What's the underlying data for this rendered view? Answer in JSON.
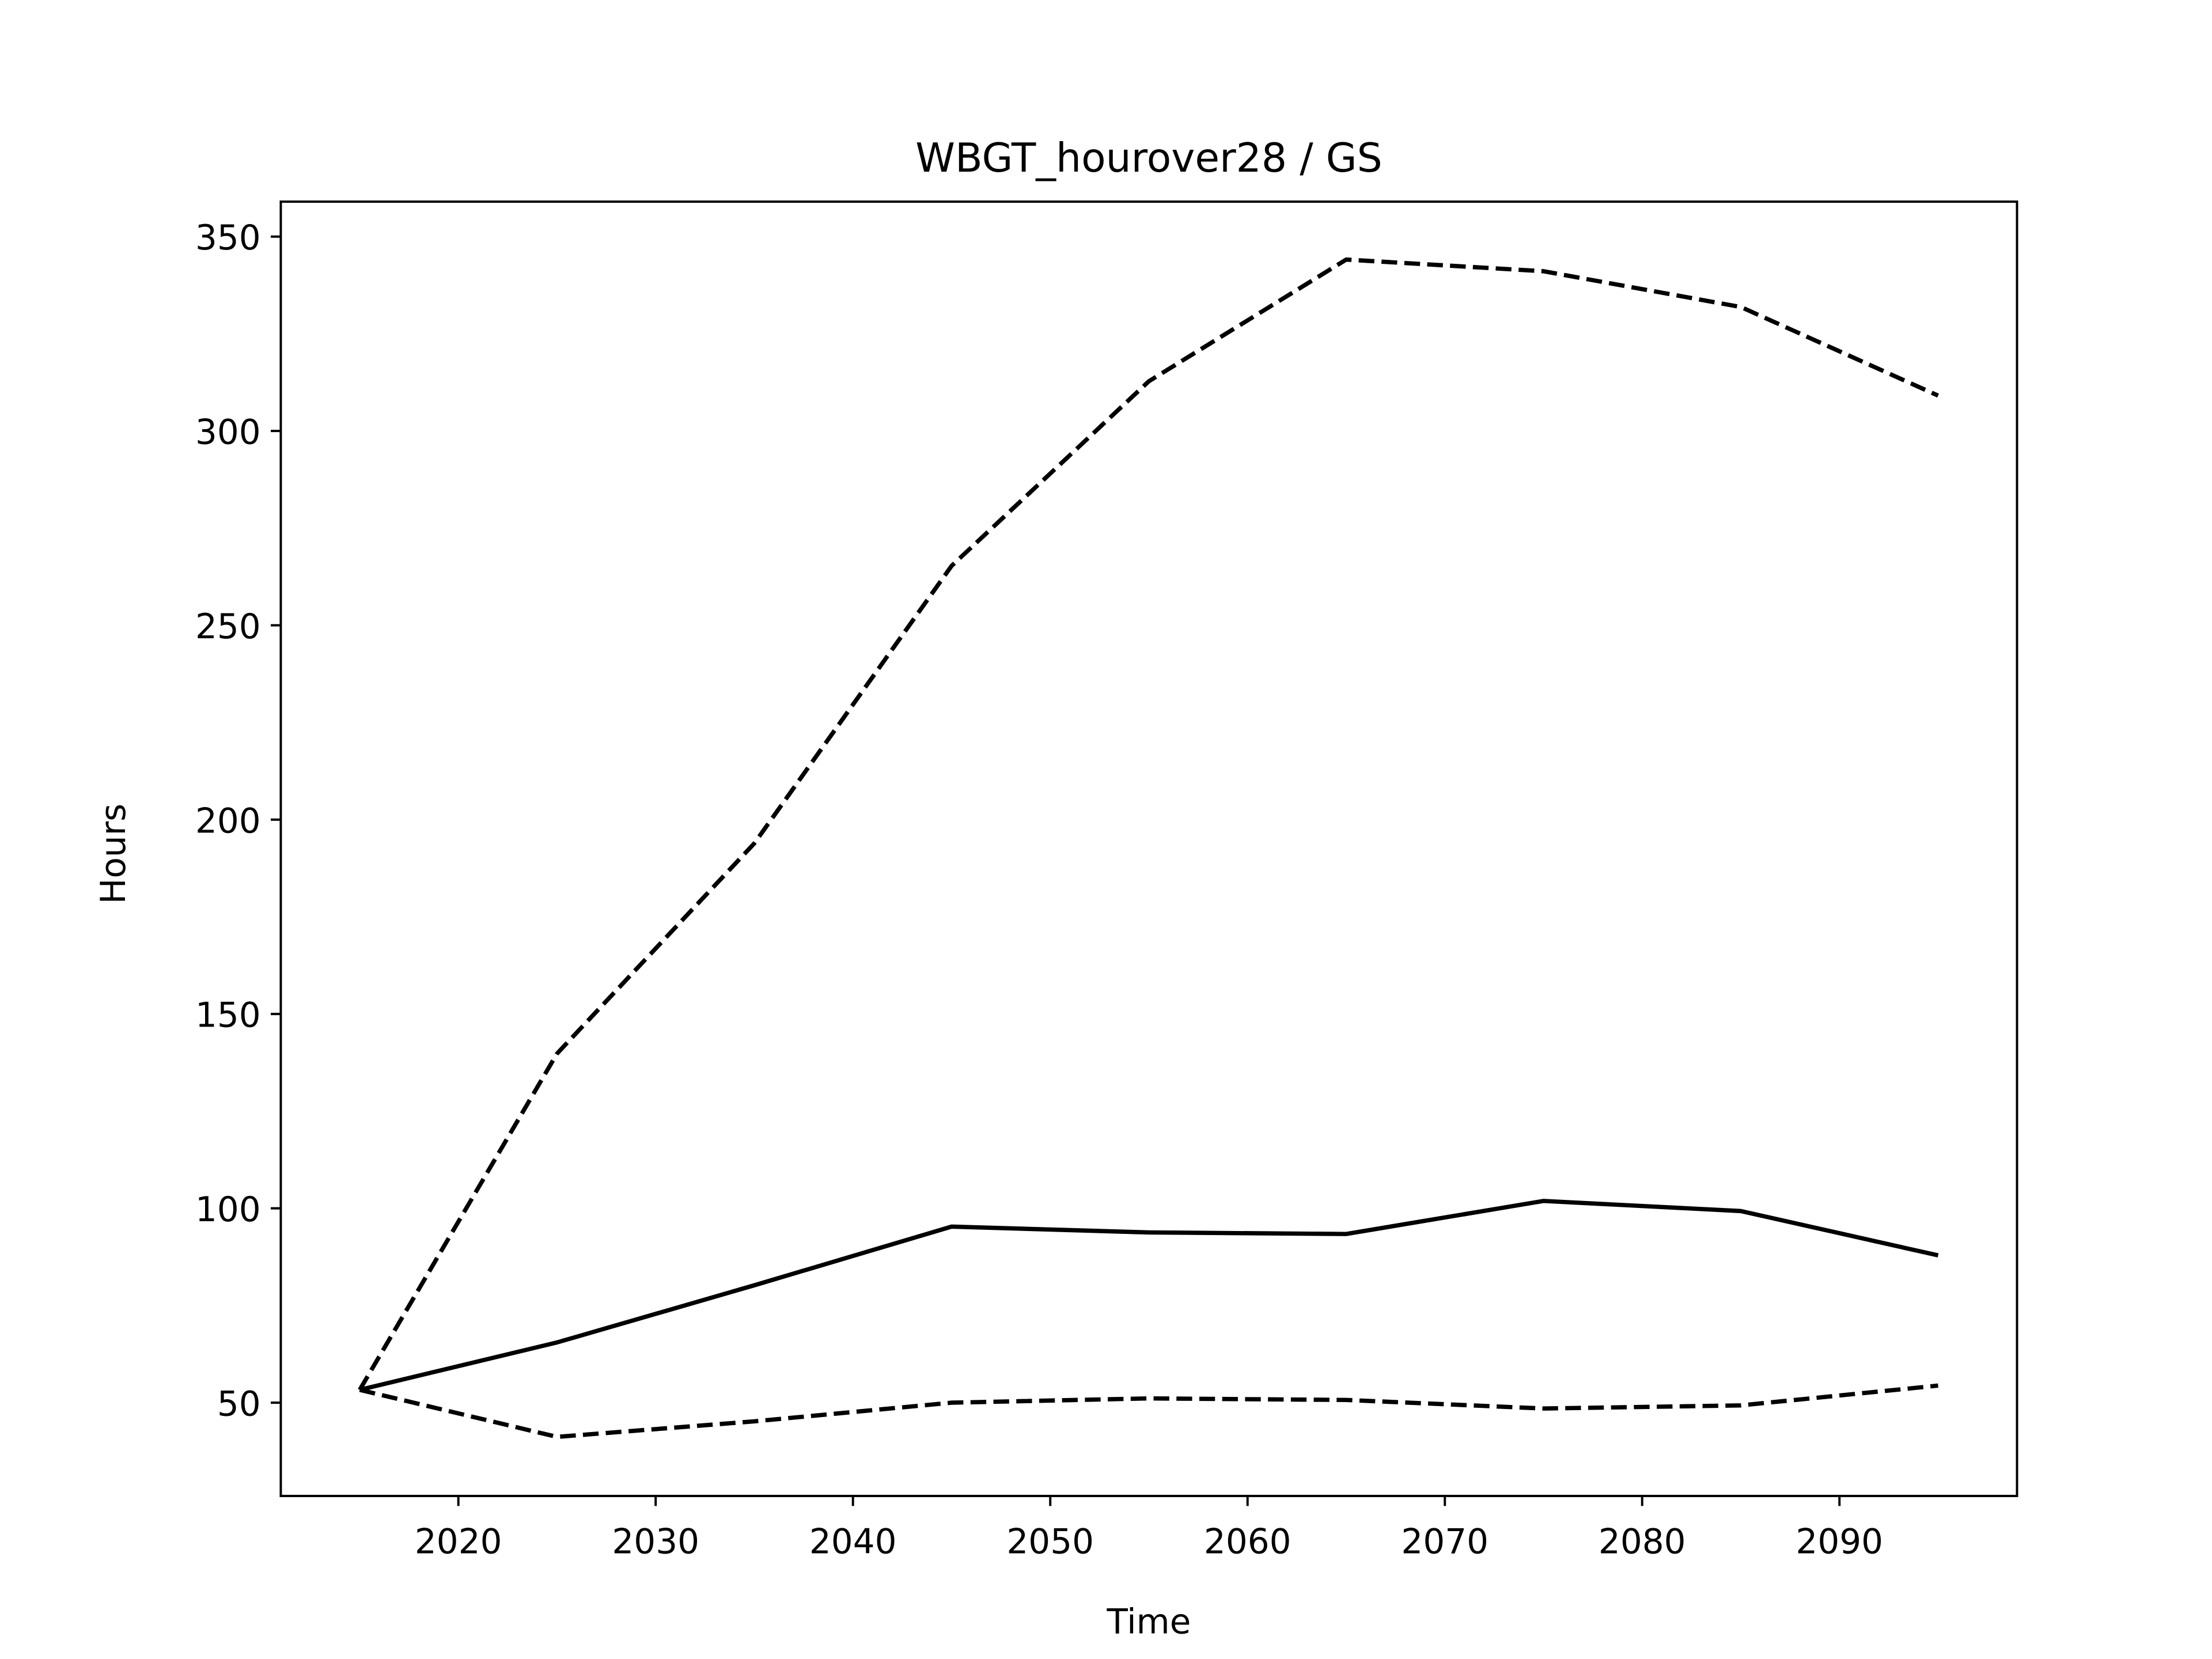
{
  "chart_data": {
    "type": "line",
    "title": "WBGT_hourover28 / GS",
    "xlabel": "Time",
    "ylabel": "Hours",
    "xlim": [
      2011,
      2099
    ],
    "ylim": [
      26,
      359
    ],
    "xticks": [
      2020,
      2030,
      2040,
      2050,
      2060,
      2070,
      2080,
      2090
    ],
    "yticks": [
      50,
      100,
      150,
      200,
      250,
      300,
      350
    ],
    "grid": false,
    "legend": "none",
    "x": [
      2015,
      2025,
      2035,
      2045,
      2055,
      2065,
      2075,
      2085,
      2095
    ],
    "series": [
      {
        "style": "dashed",
        "color": "#000000",
        "values": [
          53.3,
          139.8,
          193.9,
          265.3,
          312.8,
          344.1,
          341.1,
          331.9,
          309.1
        ]
      },
      {
        "style": "solid",
        "color": "#000000",
        "values": [
          53.3,
          65.5,
          80.2,
          95.3,
          93.8,
          93.4,
          101.9,
          99.3,
          87.9
        ]
      },
      {
        "style": "dashed",
        "color": "#000000",
        "values": [
          53.3,
          41.2,
          45.2,
          50.0,
          51.1,
          50.7,
          48.5,
          49.3,
          54.4
        ]
      }
    ]
  }
}
